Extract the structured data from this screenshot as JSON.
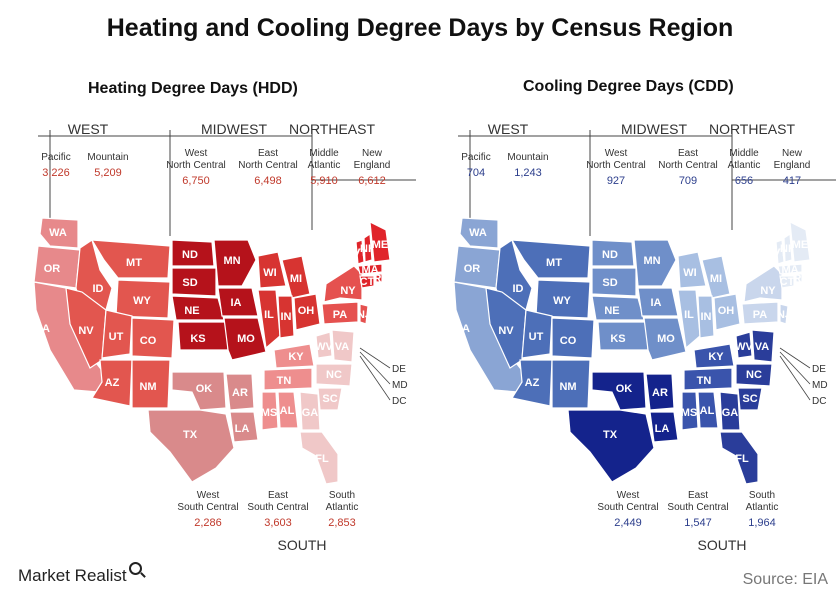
{
  "title": "Heating and Cooling Degree Days by Census Region",
  "footer": {
    "brand": "Market Realist",
    "source": "Source: EIA"
  },
  "colors": {
    "hdd": {
      "West": "#e46a6a",
      "Pacific": "#e7898b",
      "Mountain": "#e2564f",
      "WNC": "#b5121b",
      "ENC": "#d73431",
      "MidAtl": "#e5514f",
      "NewEng": "#e0242a",
      "WSC": "#d98a8b",
      "ESC": "#ee8e8e",
      "SAtl": "#f0c8c8"
    },
    "cdd": {
      "Pacific": "#8aa5d4",
      "Mountain": "#4d6fb8",
      "WNC": "#6f8fc9",
      "ENC": "#a8bfe2",
      "MidAtl": "#c9d6ec",
      "NewEng": "#e4ebf5",
      "WSC": "#14238c",
      "ESC": "#3a54ac",
      "SAtl": "#2a3d9a"
    }
  },
  "hdd_map": {
    "title": "Heating Degree Days (HDD)",
    "regions": [
      "WEST",
      "MIDWEST",
      "NORTHEAST",
      "SOUTH"
    ],
    "divisions": [
      {
        "name": "Pacific",
        "value": "3,226"
      },
      {
        "name": "Mountain",
        "value": "5,209"
      },
      {
        "name": "West North Central",
        "value": "6,750"
      },
      {
        "name": "East North Central",
        "value": "6,498"
      },
      {
        "name": "Middle Atlantic",
        "value": "5,910"
      },
      {
        "name": "New England",
        "value": "6,612"
      },
      {
        "name": "West South Central",
        "value": "2,286"
      },
      {
        "name": "East South Central",
        "value": "3,603"
      },
      {
        "name": "South Atlantic",
        "value": "2,853"
      }
    ]
  },
  "cdd_map": {
    "title": "Cooling Degree Days (CDD)",
    "regions": [
      "WEST",
      "MIDWEST",
      "NORTHEAST",
      "SOUTH"
    ],
    "divisions": [
      {
        "name": "Pacific",
        "value": "704"
      },
      {
        "name": "Mountain",
        "value": "1,243"
      },
      {
        "name": "West North Central",
        "value": "927"
      },
      {
        "name": "East North Central",
        "value": "709"
      },
      {
        "name": "Middle Atlantic",
        "value": "656"
      },
      {
        "name": "New England",
        "value": "417"
      },
      {
        "name": "West South Central",
        "value": "2,449"
      },
      {
        "name": "East South Central",
        "value": "1,547"
      },
      {
        "name": "South Atlantic",
        "value": "1,964"
      }
    ]
  },
  "states": [
    "WA",
    "OR",
    "CA",
    "ID",
    "NV",
    "MT",
    "WY",
    "UT",
    "CO",
    "AZ",
    "NM",
    "ND",
    "SD",
    "NE",
    "KS",
    "MN",
    "IA",
    "MO",
    "WI",
    "MI",
    "IL",
    "IN",
    "OH",
    "NY",
    "PA",
    "NJ",
    "VT",
    "NH",
    "ME",
    "MA",
    "RI",
    "CT",
    "OK",
    "TX",
    "AR",
    "LA",
    "KY",
    "TN",
    "MS",
    "AL",
    "WV",
    "VA",
    "NC",
    "SC",
    "GA",
    "FL",
    "DE",
    "MD",
    "DC"
  ]
}
